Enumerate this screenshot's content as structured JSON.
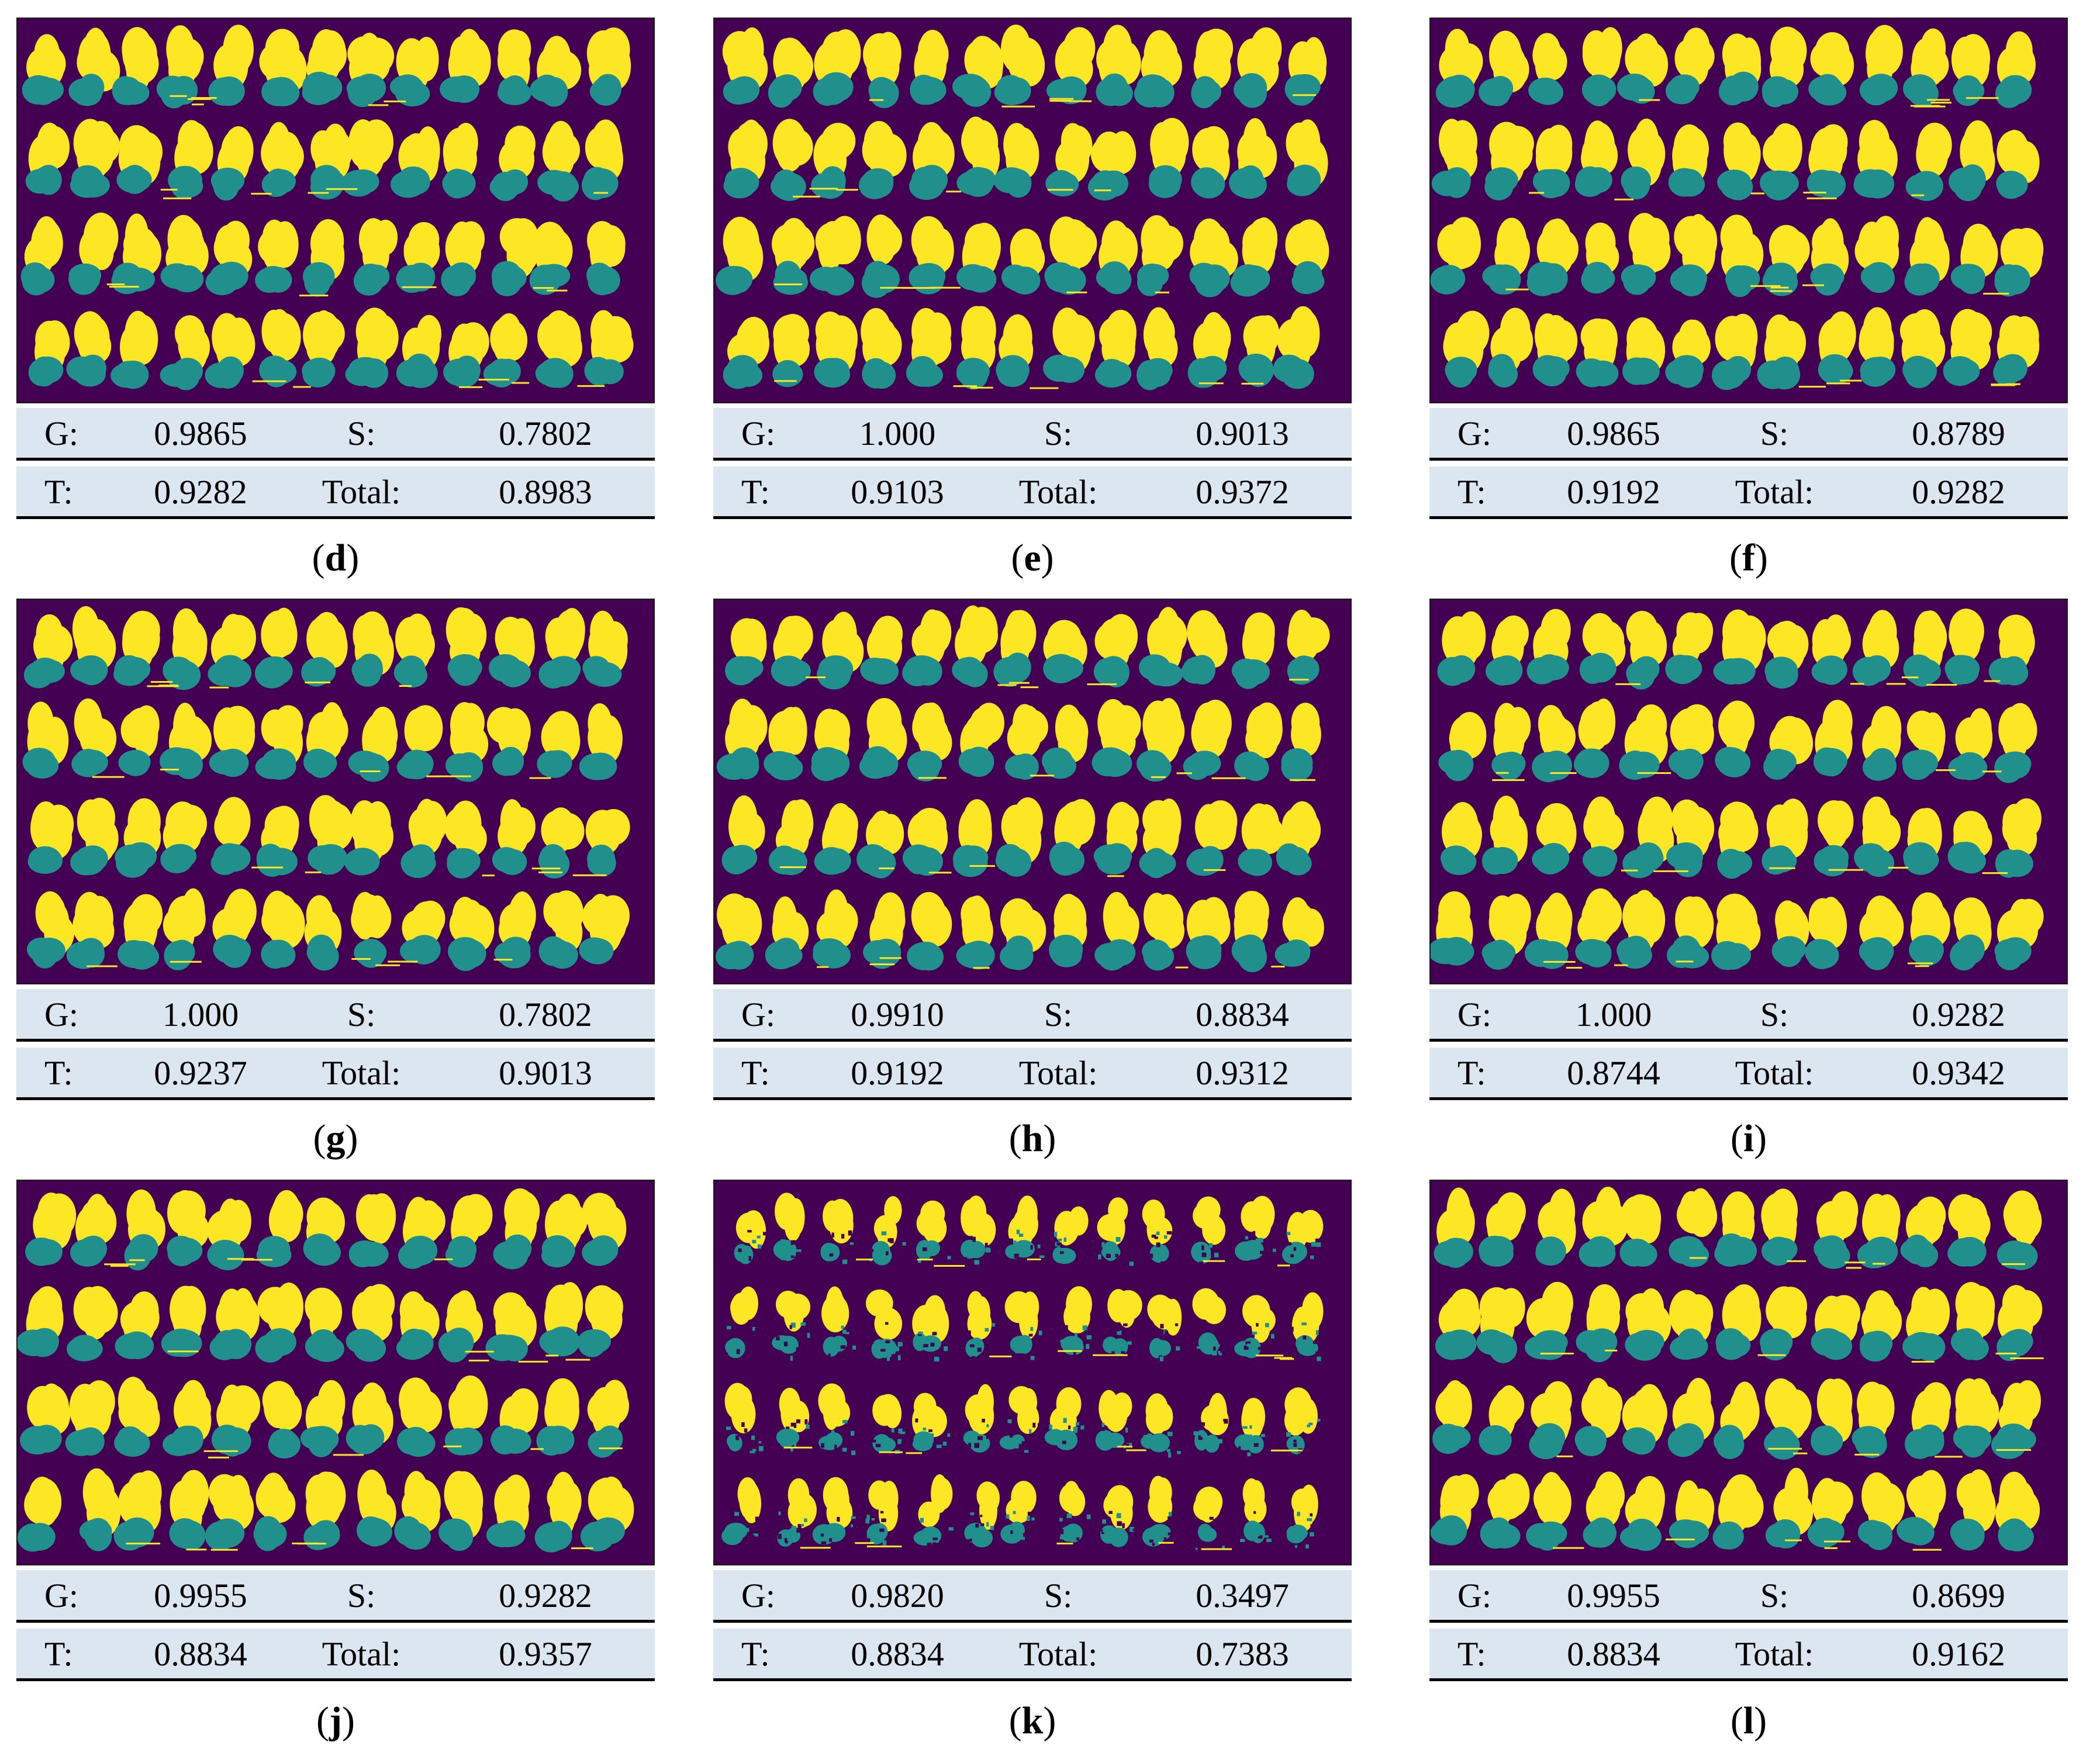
{
  "colors": {
    "background": "#440154",
    "top_class": "#fde725",
    "bottom_class": "#21908d",
    "table_fill": "#dce6f1"
  },
  "panels": [
    {
      "id": "d",
      "G": "0.9865",
      "S": "0.7802",
      "T": "0.9282",
      "Total": "0.8983"
    },
    {
      "id": "e",
      "G": "1.000",
      "S": "0.9013",
      "T": "0.9103",
      "Total": "0.9372"
    },
    {
      "id": "f",
      "G": "0.9865",
      "S": "0.8789",
      "T": "0.9192",
      "Total": "0.9282"
    },
    {
      "id": "g",
      "G": "1.000",
      "S": "0.7802",
      "T": "0.9237",
      "Total": "0.9013"
    },
    {
      "id": "h",
      "G": "0.9910",
      "S": "0.8834",
      "T": "0.9192",
      "Total": "0.9312"
    },
    {
      "id": "i",
      "G": "1.000",
      "S": "0.9282",
      "T": "0.8744",
      "Total": "0.9342"
    },
    {
      "id": "j",
      "G": "0.9955",
      "S": "0.9282",
      "T": "0.8834",
      "Total": "0.9357"
    },
    {
      "id": "k",
      "G": "0.9820",
      "S": "0.3497",
      "T": "0.8834",
      "Total": "0.7383"
    },
    {
      "id": "l",
      "G": "0.9955",
      "S": "0.8699",
      "T": "0.8834",
      "Total": "0.9162"
    }
  ],
  "labels": {
    "g": "G:",
    "s": "S:",
    "t": "T:",
    "total": "Total:"
  }
}
